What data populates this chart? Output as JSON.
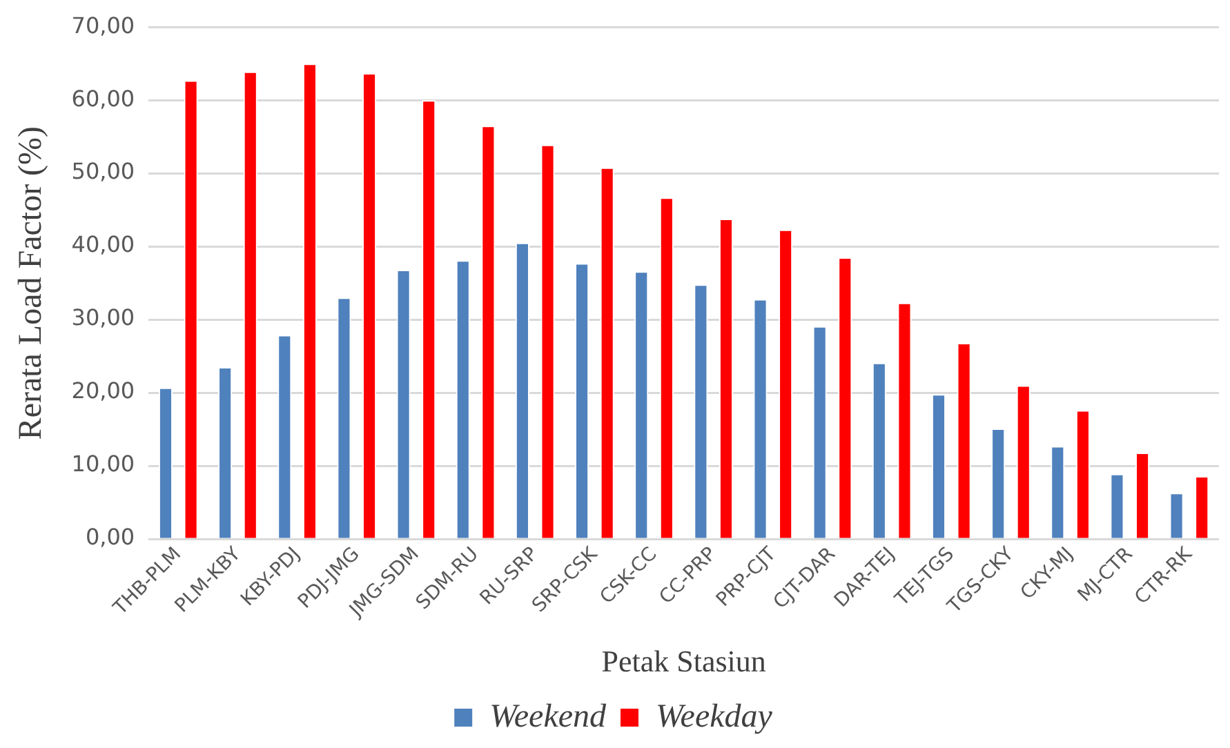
{
  "chart_data": {
    "type": "bar",
    "xlabel": "Petak Stasiun",
    "ylabel": "Rerata Load Factor (%)",
    "categories": [
      "THB-PLM",
      "PLM-KBY",
      "KBY-PDJ",
      "PDJ-JMG",
      "JMG-SDM",
      "SDM-RU",
      "RU-SRP",
      "SRP-CSK",
      "CSK-CC",
      "CC-PRP",
      "PRP-CJT",
      "CJT-DAR",
      "DAR-TEJ",
      "TEJ-TGS",
      "TGS-CKY",
      "CKY-MJ",
      "MJ-CTR",
      "CTR-RK"
    ],
    "series": [
      {
        "name": "Weekend",
        "color": "#4f81bd",
        "values": [
          20.7,
          23.5,
          27.9,
          33.0,
          36.8,
          38.1,
          40.5,
          37.7,
          36.6,
          34.8,
          32.8,
          29.1,
          24.1,
          19.8,
          15.1,
          12.7,
          8.9,
          6.3
        ]
      },
      {
        "name": "Weekday",
        "color": "#ff0000",
        "values": [
          62.7,
          63.9,
          65.0,
          63.7,
          60.0,
          56.5,
          53.9,
          50.8,
          46.7,
          43.8,
          42.3,
          38.5,
          32.3,
          26.8,
          21.0,
          17.6,
          11.8,
          8.6
        ]
      }
    ],
    "ylim": [
      0,
      70
    ],
    "yticks": [
      {
        "value": 0,
        "label": "0,00"
      },
      {
        "value": 10,
        "label": "10,00"
      },
      {
        "value": 20,
        "label": "20,00"
      },
      {
        "value": 30,
        "label": "30,00"
      },
      {
        "value": 40,
        "label": "40,00"
      },
      {
        "value": 50,
        "label": "50,00"
      },
      {
        "value": 60,
        "label": "60,00"
      },
      {
        "value": 70,
        "label": "70,00"
      }
    ],
    "grid": "y",
    "legend": "bottom"
  }
}
